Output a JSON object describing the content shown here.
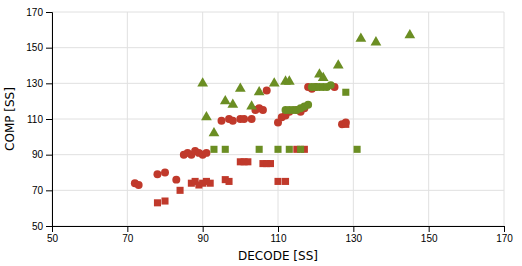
{
  "chart_data": {
    "type": "scatter",
    "xlabel": "DECODE [SS]",
    "ylabel": "COMP [SS]",
    "xlim": [
      50,
      170
    ],
    "ylim": [
      50,
      170
    ],
    "xticks": [
      50,
      70,
      90,
      110,
      130,
      150,
      170
    ],
    "yticks": [
      50,
      70,
      90,
      110,
      130,
      150,
      170
    ],
    "grid": true,
    "series": [
      {
        "color": "#C0392B",
        "marker": "circle",
        "x": [
          72,
          73,
          78,
          80,
          83,
          85,
          86,
          87,
          88,
          89,
          90,
          91,
          95,
          97,
          98,
          100,
          101,
          103,
          104,
          105,
          106,
          107,
          110,
          111,
          112,
          113,
          115,
          116,
          117,
          118,
          119,
          120,
          125,
          127,
          128
        ],
        "values": [
          74,
          73,
          79,
          80,
          76,
          90,
          91,
          90,
          92,
          91,
          90,
          91,
          109,
          110,
          109,
          110,
          110,
          110,
          115,
          116,
          115,
          126,
          108,
          111,
          112,
          114,
          115,
          114,
          116,
          128,
          127,
          128,
          128,
          107,
          108
        ]
      },
      {
        "color": "#C0392B",
        "marker": "square",
        "x": [
          78,
          80,
          84,
          87,
          88,
          89,
          90,
          91,
          92,
          96,
          97,
          100,
          101,
          102,
          106,
          107,
          108,
          110,
          112,
          115,
          117,
          128
        ],
        "values": [
          63,
          64,
          70,
          74,
          75,
          73,
          74,
          75,
          74,
          76,
          75,
          86,
          86,
          86,
          85,
          85,
          85,
          75,
          75,
          93,
          93,
          107
        ]
      },
      {
        "color": "#6B8E23",
        "marker": "triangle",
        "x": [
          90,
          91,
          93,
          96,
          98,
          100,
          103,
          105,
          109,
          112,
          113,
          121,
          122,
          126,
          132,
          136,
          145
        ],
        "values": [
          130,
          111,
          102,
          120,
          118,
          127,
          117,
          125,
          130,
          131,
          131,
          135,
          133,
          140,
          155,
          153,
          157
        ]
      },
      {
        "color": "#6B8E23",
        "marker": "circle",
        "x": [
          112,
          113,
          114,
          115,
          116,
          117,
          118,
          119,
          120,
          121,
          122,
          123,
          124
        ],
        "values": [
          115,
          115,
          115,
          115,
          116,
          117,
          118,
          128,
          128,
          128,
          128,
          128,
          129
        ]
      },
      {
        "color": "#6B8E23",
        "marker": "square",
        "x": [
          93,
          96,
          105,
          110,
          113,
          116,
          128,
          131
        ],
        "values": [
          93,
          93,
          93,
          93,
          93,
          93,
          125,
          93
        ]
      }
    ]
  }
}
